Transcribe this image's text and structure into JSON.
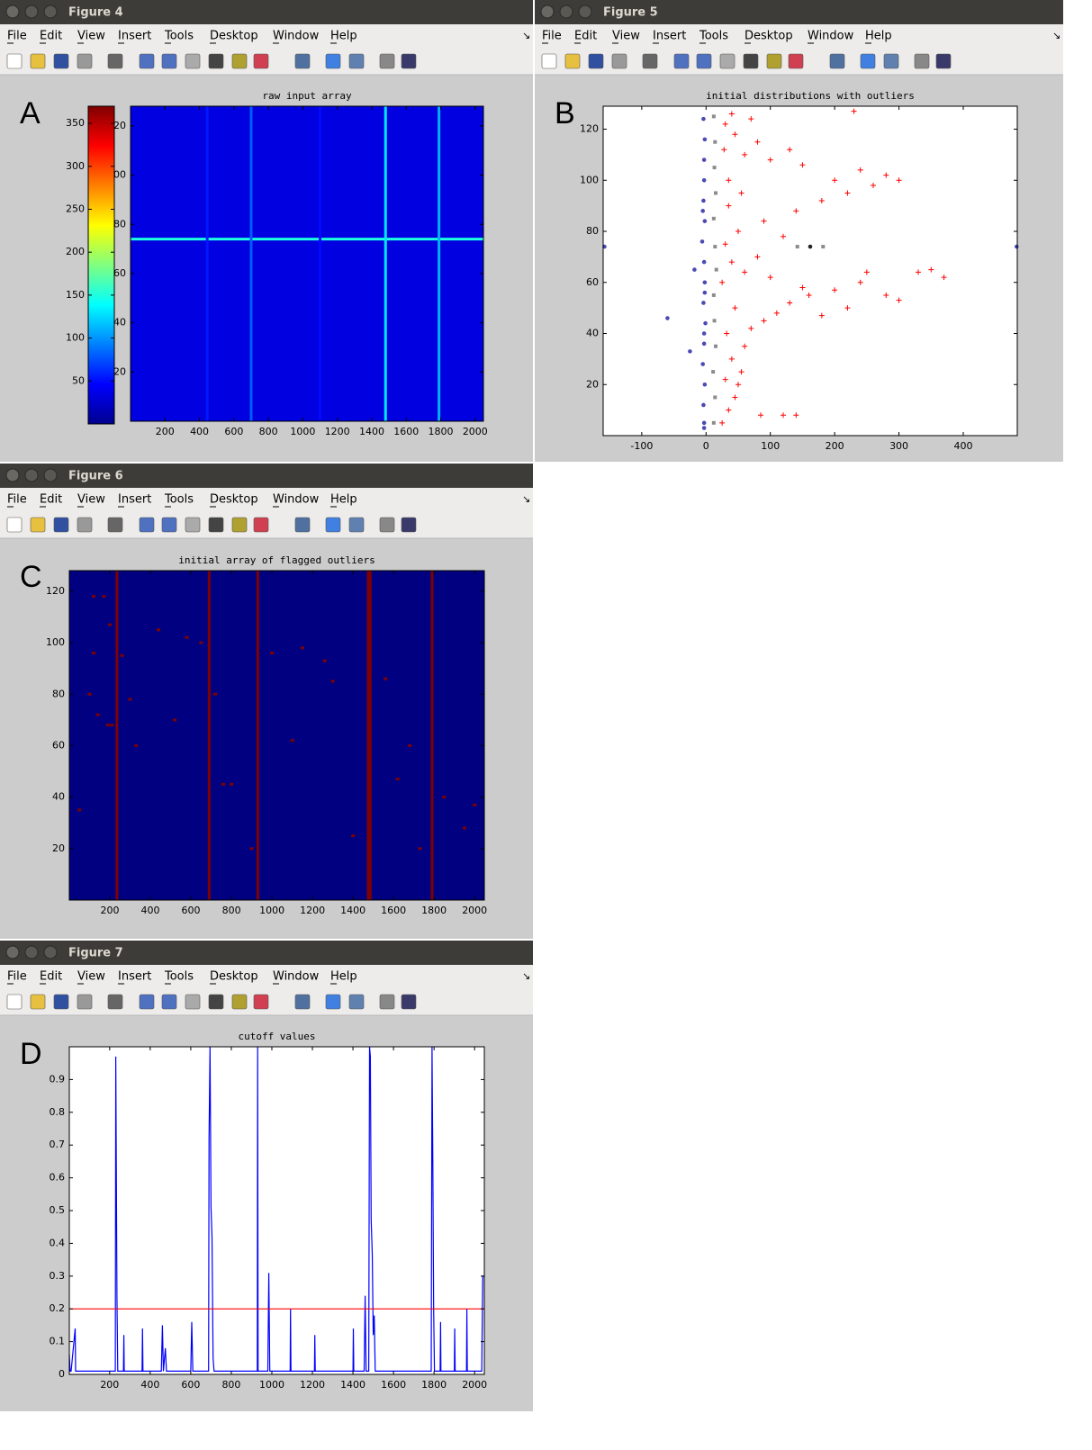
{
  "windows": [
    {
      "title": "Figure 4",
      "menu": [
        "File",
        "Edit",
        "View",
        "Insert",
        "Tools",
        "Desktop",
        "Window",
        "Help"
      ],
      "panel": "A"
    },
    {
      "title": "Figure 5",
      "menu": [
        "File",
        "Edit",
        "View",
        "Insert",
        "Tools",
        "Desktop",
        "Window",
        "Help"
      ],
      "panel": "B"
    },
    {
      "title": "Figure 6",
      "menu": [
        "File",
        "Edit",
        "View",
        "Insert",
        "Tools",
        "Desktop",
        "Window",
        "Help"
      ],
      "panel": "C"
    },
    {
      "title": "Figure 7",
      "menu": [
        "File",
        "Edit",
        "View",
        "Insert",
        "Tools",
        "Desktop",
        "Window",
        "Help"
      ],
      "panel": "D"
    }
  ],
  "chart_data": [
    {
      "type": "heatmap",
      "title": "raw input array",
      "colormap": "jet",
      "clim": [
        0,
        370
      ],
      "colorbar_ticks": [
        50,
        100,
        150,
        200,
        250,
        300,
        350
      ],
      "xlim": [
        0,
        2048
      ],
      "ylim": [
        0,
        128
      ],
      "xticks": [
        200,
        400,
        600,
        800,
        1000,
        1200,
        1400,
        1600,
        1800,
        2000
      ],
      "yticks": [
        20,
        40,
        60,
        80,
        100,
        120
      ],
      "background": 35,
      "streaks": [
        {
          "orientation": "horizontal",
          "position": 74,
          "value": 150
        },
        {
          "orientation": "vertical",
          "position": 445,
          "value": 55
        },
        {
          "orientation": "vertical",
          "position": 700,
          "value": 80
        },
        {
          "orientation": "vertical",
          "position": 1100,
          "value": 50
        },
        {
          "orientation": "vertical",
          "position": 1480,
          "value": 130
        },
        {
          "orientation": "vertical",
          "position": 1790,
          "value": 110
        }
      ]
    },
    {
      "type": "scatter",
      "title": "initial distributions with outliers",
      "xlim": [
        -160,
        484
      ],
      "ylim": [
        0,
        129
      ],
      "xticks": [
        -100,
        0,
        100,
        200,
        300,
        400
      ],
      "yticks": [
        20,
        40,
        60,
        80,
        100,
        120
      ],
      "series": [
        {
          "marker": "circle",
          "color": "#4a4ab4",
          "x": [
            -3,
            -4,
            -2,
            -5,
            -3,
            -1,
            -4,
            -2,
            -3,
            -6,
            -2,
            -4,
            -3,
            -60,
            -18,
            -25,
            -158,
            483,
            -3,
            -2,
            -4,
            -3,
            -2,
            -5,
            -3
          ],
          "values": [
            5,
            12,
            20,
            28,
            36,
            44,
            52,
            60,
            68,
            76,
            84,
            92,
            100,
            46,
            65,
            33,
            74,
            74,
            108,
            116,
            124,
            3,
            56,
            88,
            40
          ]
        },
        {
          "marker": "square",
          "color": "#8c8c8c",
          "x": [
            12,
            14,
            11,
            15,
            13,
            12,
            16,
            14,
            12,
            15,
            13,
            14,
            12,
            142,
            182
          ],
          "values": [
            5,
            15,
            25,
            35,
            45,
            55,
            65,
            74,
            85,
            95,
            105,
            115,
            125,
            74,
            74
          ]
        },
        {
          "marker": "circle",
          "color": "#222222",
          "x": [
            162
          ],
          "values": [
            74
          ]
        },
        {
          "marker": "plus",
          "color": "#ff0000",
          "x": [
            25,
            35,
            45,
            30,
            55,
            40,
            60,
            32,
            70,
            90,
            110,
            45,
            130,
            160,
            200,
            240,
            280,
            300,
            220,
            180,
            150,
            100,
            60,
            250,
            330,
            350,
            370,
            40,
            80,
            30,
            120,
            50,
            90,
            140,
            35,
            180,
            220,
            260,
            200,
            280,
            240,
            150,
            100,
            300,
            60,
            130,
            80,
            45,
            30,
            70,
            230,
            40,
            25,
            35,
            50,
            85,
            140,
            120,
            55,
            28
          ],
          "values": [
            5,
            10,
            15,
            22,
            25,
            30,
            35,
            40,
            42,
            45,
            48,
            50,
            52,
            55,
            57,
            60,
            55,
            53,
            50,
            47,
            58,
            62,
            64,
            64,
            64,
            65,
            62,
            68,
            70,
            75,
            78,
            80,
            84,
            88,
            90,
            92,
            95,
            98,
            100,
            102,
            104,
            106,
            108,
            100,
            110,
            112,
            115,
            118,
            122,
            124,
            127,
            126,
            60,
            100,
            20,
            8,
            8,
            8,
            95,
            112
          ]
        }
      ]
    },
    {
      "type": "heatmap",
      "title": "initial array of flagged outliers",
      "colormap": "jet",
      "clim": [
        0,
        1
      ],
      "xlim": [
        0,
        2048
      ],
      "ylim": [
        0,
        128
      ],
      "xticks": [
        200,
        400,
        600,
        800,
        1000,
        1200,
        1400,
        1600,
        1800,
        2000
      ],
      "yticks": [
        20,
        40,
        60,
        80,
        100,
        120
      ],
      "background": 0,
      "streaks": [
        {
          "orientation": "vertical",
          "position": 235,
          "value": 1
        },
        {
          "orientation": "vertical",
          "position": 690,
          "value": 1
        },
        {
          "orientation": "vertical",
          "position": 930,
          "value": 1
        },
        {
          "orientation": "vertical",
          "position": 1475,
          "value": 1
        },
        {
          "orientation": "vertical",
          "position": 1485,
          "value": 1
        },
        {
          "orientation": "vertical",
          "position": 1790,
          "value": 1
        }
      ],
      "points": {
        "value": 1,
        "x": [
          120,
          170,
          200,
          120,
          260,
          100,
          140,
          190,
          210,
          300,
          330,
          440,
          520,
          580,
          650,
          720,
          760,
          800,
          900,
          1000,
          1100,
          1150,
          1260,
          1300,
          1400,
          1560,
          1620,
          1730,
          1850,
          1950,
          2000,
          50,
          1680
        ],
        "y": [
          118,
          118,
          107,
          96,
          95,
          80,
          72,
          68,
          68,
          78,
          60,
          105,
          70,
          102,
          100,
          80,
          45,
          45,
          20,
          96,
          62,
          98,
          93,
          85,
          25,
          86,
          47,
          20,
          40,
          28,
          37,
          35,
          60
        ]
      }
    },
    {
      "type": "line",
      "title": "cutoff values",
      "xlim": [
        1,
        2048
      ],
      "ylim": [
        0,
        1
      ],
      "xticks": [
        200,
        400,
        600,
        800,
        1000,
        1200,
        1400,
        1600,
        1800,
        2000
      ],
      "yticks": [
        0,
        0.1,
        0.2,
        0.3,
        0.4,
        0.5,
        0.6,
        0.7,
        0.8,
        0.9
      ],
      "series": [
        {
          "color": "#0000ff",
          "x": [
            1,
            5,
            10,
            30,
            32,
            40,
            228,
            230,
            236,
            240,
            268,
            270,
            272,
            360,
            362,
            364,
            455,
            460,
            465,
            475,
            480,
            485,
            600,
            605,
            610,
            688,
            690,
            695,
            700,
            705,
            710,
            715,
            928,
            930,
            932,
            980,
            985,
            990,
            1090,
            1092,
            1094,
            1210,
            1212,
            1214,
            1400,
            1402,
            1404,
            1455,
            1460,
            1465,
            1478,
            1482,
            1486,
            1490,
            1495,
            1500,
            1505,
            1510,
            1520,
            1600,
            1786,
            1790,
            1794,
            1798,
            1802,
            1830,
            1832,
            1834,
            1900,
            1902,
            1904,
            1960,
            1962,
            1964,
            2035,
            2040,
            2048
          ],
          "values": [
            0.06,
            0.01,
            0.01,
            0.14,
            0.01,
            0.01,
            0.01,
            0.97,
            0.24,
            0.01,
            0.01,
            0.12,
            0.01,
            0.01,
            0.14,
            0.01,
            0.01,
            0.15,
            0.01,
            0.08,
            0.01,
            0.01,
            0.01,
            0.16,
            0.01,
            0.01,
            0.72,
            1,
            0.51,
            0.42,
            0.05,
            0.01,
            0.01,
            1,
            0.01,
            0.01,
            0.31,
            0.01,
            0.01,
            0.2,
            0.01,
            0.01,
            0.12,
            0.01,
            0.01,
            0.14,
            0.01,
            0.01,
            0.24,
            0.01,
            0.01,
            1,
            0.97,
            0.47,
            0.37,
            0.12,
            0.18,
            0.01,
            0.01,
            0.01,
            0.01,
            1,
            0.64,
            0.2,
            0.01,
            0.01,
            0.16,
            0.01,
            0.01,
            0.14,
            0.01,
            0.01,
            0.2,
            0.01,
            0.01,
            0.3,
            0.3
          ]
        },
        {
          "color": "#ff0000",
          "x": [
            1,
            2048
          ],
          "values": [
            0.2,
            0.2
          ]
        }
      ]
    }
  ]
}
